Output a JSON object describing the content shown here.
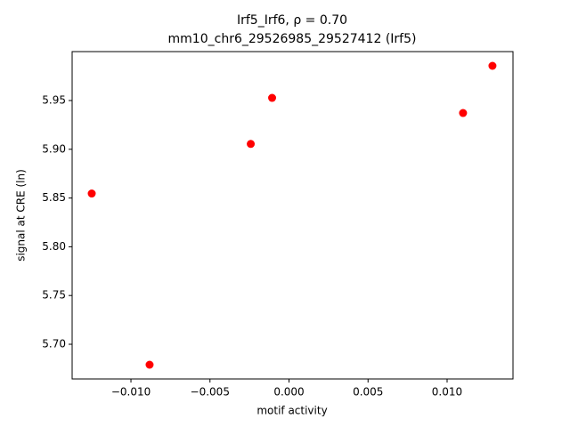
{
  "chart_data": {
    "type": "scatter",
    "title": "Irf5_Irf6, ρ = 0.70",
    "subtitle": "mm10_chr6_29526985_29527412 (Irf5)",
    "x_label": "motif activity",
    "y_label": "signal at CRE (ln)",
    "color": "#ff0000",
    "x": [
      -0.01248,
      -0.00882,
      -0.00242,
      -0.00107,
      0.01101,
      0.01287
    ],
    "values": [
      5.8546,
      5.679,
      5.9055,
      5.9527,
      5.9372,
      5.9856
    ],
    "xlim": [
      -0.01372,
      0.01417
    ],
    "ylim": [
      5.6644,
      6.0002
    ],
    "xticks": [
      {
        "value": -0.01,
        "label": "−0.010"
      },
      {
        "value": -0.005,
        "label": "−0.005"
      },
      {
        "value": 0,
        "label": "0.000"
      },
      {
        "value": 0.005,
        "label": "0.005"
      },
      {
        "value": 0.01,
        "label": "0.010"
      }
    ],
    "yticks": [
      {
        "value": 5.7,
        "label": "5.70"
      },
      5.75,
      {
        "value": 5.8,
        "label": "5.80"
      },
      5.85,
      {
        "value": 5.9,
        "label": "5.90"
      },
      5.95
    ],
    "grid": false
  }
}
